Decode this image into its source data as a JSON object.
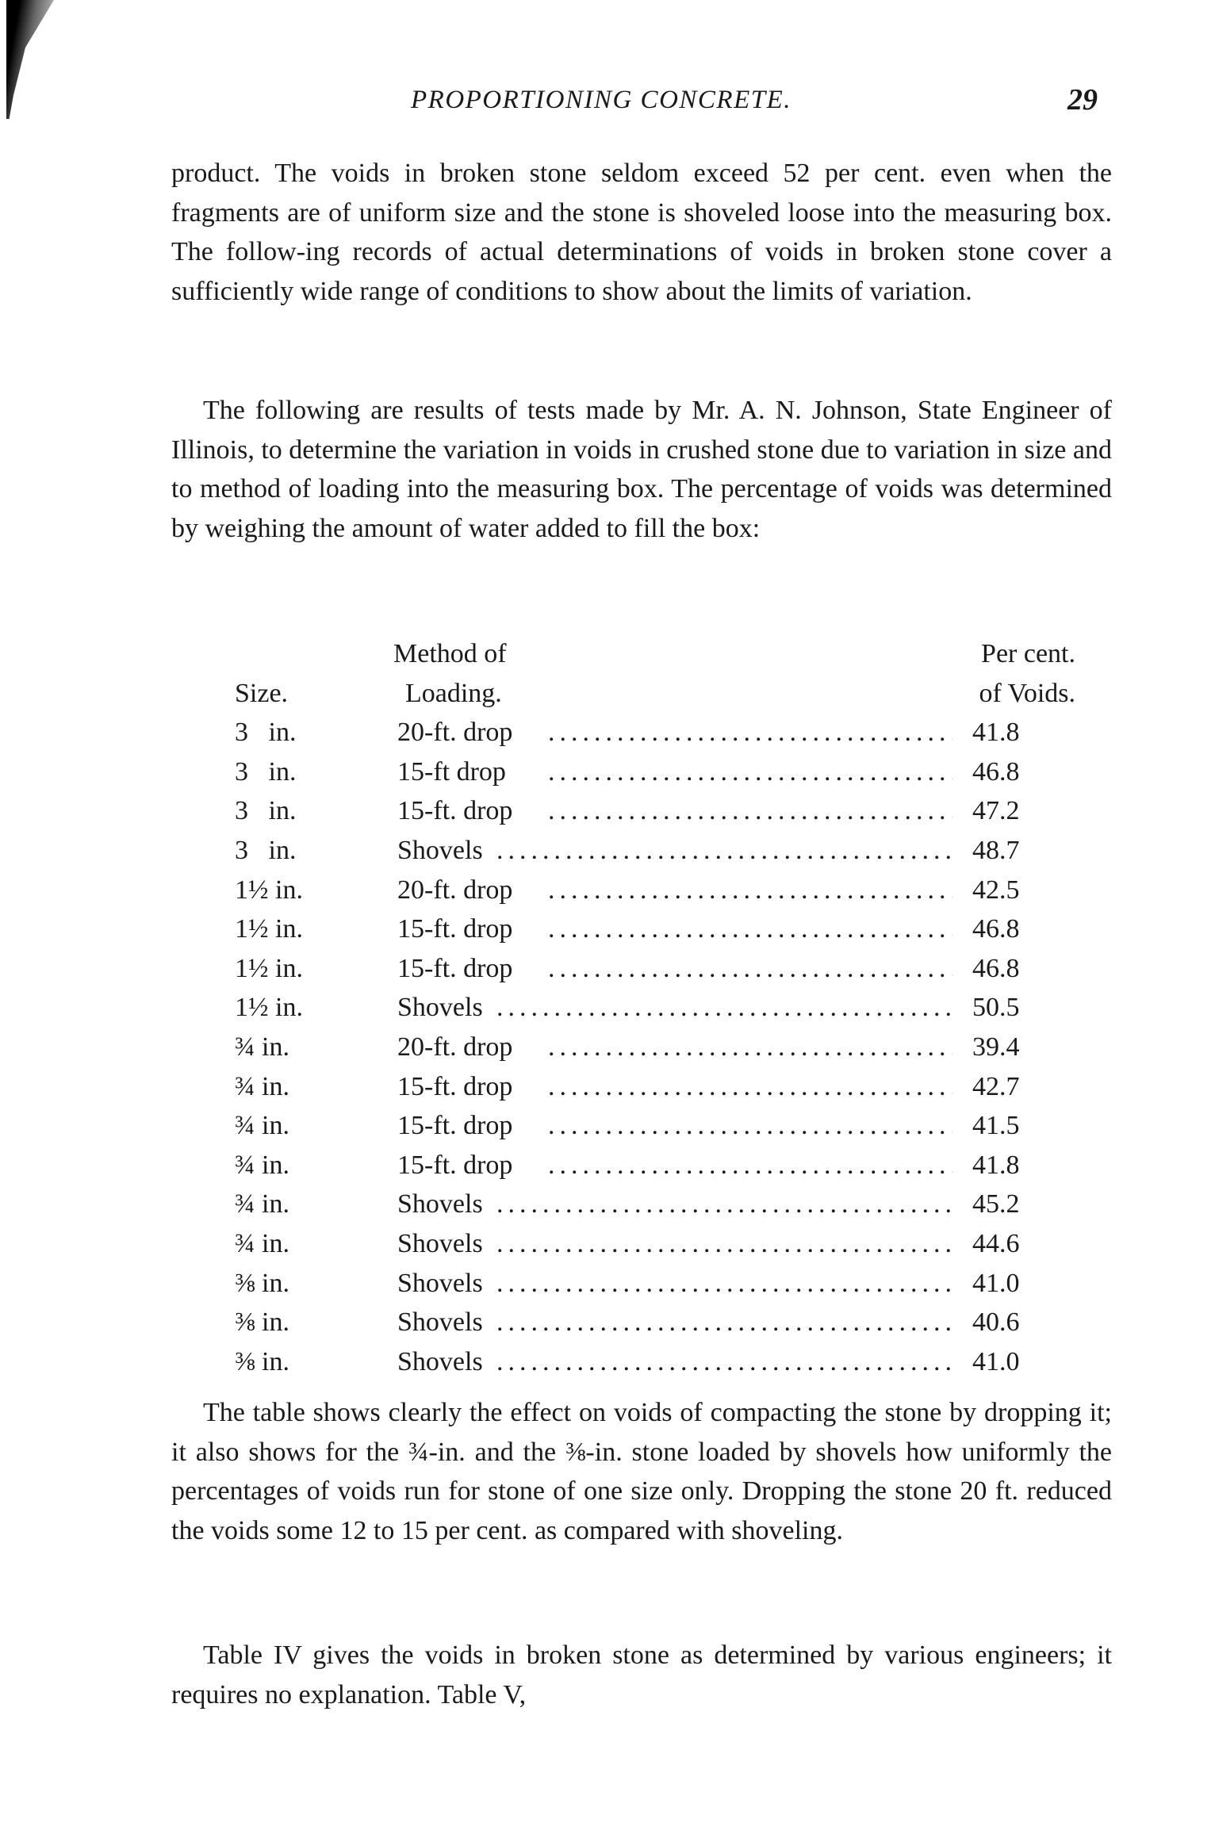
{
  "header": {
    "running_title": "PROPORTIONING CONCRETE.",
    "page_number": "29"
  },
  "paragraphs": [
    "product. The voids in broken stone seldom exceed 52 per cent. even when the fragments are of uniform size and the stone is shoveled loose into the measuring box. The follow-ing records of actual determinations of voids in broken stone cover a sufficiently wide range of conditions to show about the limits of variation.",
    "The following are results of tests made by Mr. A. N. Johnson, State Engineer of Illinois, to determine the variation in voids in crushed stone due to variation in size and to method of loading into the measuring box. The percentage of voids was determined by weighing the amount of water added to fill the box:"
  ],
  "table": {
    "headers": {
      "size": "Size.",
      "method_line1": "Method of",
      "method_line2": "Loading.",
      "voids_line1": "Per cent.",
      "voids_line2": "of Voids."
    },
    "rows": [
      {
        "size": "3   in.",
        "method": "20-ft. drop",
        "voids": "41.8"
      },
      {
        "size": "3   in.",
        "method": "15-ft drop",
        "voids": "46.8"
      },
      {
        "size": "3   in.",
        "method": "15-ft. drop",
        "voids": "47.2"
      },
      {
        "size": "3   in.",
        "method": "Shovels",
        "voids": "48.7"
      },
      {
        "size": "1½ in.",
        "method": "20-ft. drop",
        "voids": "42.5"
      },
      {
        "size": "1½ in.",
        "method": "15-ft. drop",
        "voids": "46.8"
      },
      {
        "size": "1½ in.",
        "method": "15-ft. drop",
        "voids": "46.8"
      },
      {
        "size": "1½ in.",
        "method": "Shovels",
        "voids": "50.5"
      },
      {
        "size": "¾ in.",
        "method": "20-ft. drop",
        "voids": "39.4"
      },
      {
        "size": "¾ in.",
        "method": "15-ft. drop",
        "voids": "42.7"
      },
      {
        "size": "¾ in.",
        "method": "15-ft. drop",
        "voids": "41.5"
      },
      {
        "size": "¾ in.",
        "method": "15-ft. drop",
        "voids": "41.8"
      },
      {
        "size": "¾ in.",
        "method": "Shovels",
        "voids": "45.2"
      },
      {
        "size": "¾ in.",
        "method": "Shovels",
        "voids": "44.6"
      },
      {
        "size": "⅜ in.",
        "method": "Shovels",
        "voids": "41.0"
      },
      {
        "size": "⅜ in.",
        "method": "Shovels",
        "voids": "40.6"
      },
      {
        "size": "⅜ in.",
        "method": "Shovels",
        "voids": "41.0"
      }
    ]
  },
  "after_paragraphs": [
    "The table shows clearly the effect on voids of compacting the stone by dropping it; it also shows for the ¾-in. and the ⅜-in. stone loaded by shovels how uniformly the percentages of voids run for stone of one size only. Dropping the stone 20 ft. reduced the voids some 12 to 15 per cent. as compared with shoveling.",
    "Table IV gives the voids in broken stone as determined by various engineers; it requires no explanation. Table V,"
  ]
}
